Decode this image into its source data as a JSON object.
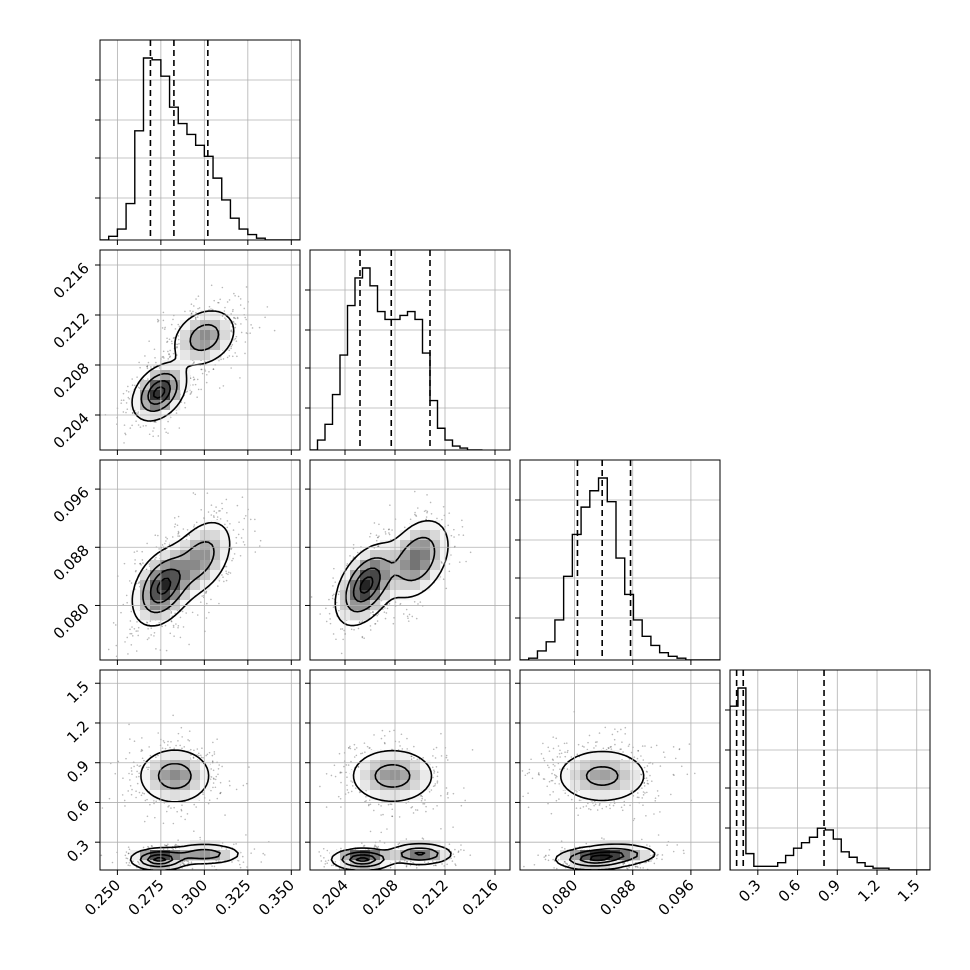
{
  "chart_data": {
    "type": "corner",
    "title": "",
    "parameters": [
      {
        "range": [
          0.24,
          0.355
        ],
        "ticks": [
          "0.250",
          "0.275",
          "0.300",
          "0.325",
          "0.350"
        ],
        "tick_values": [
          0.25,
          0.275,
          0.3,
          0.325,
          0.35
        ],
        "quantiles": [
          0.269,
          0.2825,
          0.302
        ]
      },
      {
        "range": [
          0.2012,
          0.2172
        ],
        "ticks": [
          "0.204",
          "0.208",
          "0.212",
          "0.216"
        ],
        "tick_values": [
          0.204,
          0.208,
          0.212,
          0.216
        ],
        "quantiles": [
          0.2052,
          0.2077,
          0.2108
        ]
      },
      {
        "range": [
          0.0725,
          0.1
        ],
        "ticks": [
          "0.080",
          "0.088",
          "0.096"
        ],
        "tick_values": [
          0.08,
          0.088,
          0.096
        ],
        "quantiles": [
          0.0804,
          0.0838,
          0.0877
        ]
      },
      {
        "range": [
          0.09,
          1.6
        ],
        "ticks": [
          "0.3",
          "0.6",
          "0.9",
          "1.2",
          "1.5"
        ],
        "tick_values": [
          0.3,
          0.6,
          0.9,
          1.2,
          1.5
        ],
        "quantiles": [
          0.14,
          0.19,
          0.8
        ]
      }
    ],
    "histograms": [
      {
        "edges": [
          0.24,
          0.245,
          0.25,
          0.255,
          0.26,
          0.265,
          0.27,
          0.275,
          0.28,
          0.285,
          0.29,
          0.295,
          0.3,
          0.305,
          0.31,
          0.315,
          0.32,
          0.325,
          0.33,
          0.335,
          0.34,
          0.345,
          0.35,
          0.355
        ],
        "counts": [
          0,
          0.02,
          0.06,
          0.2,
          0.6,
          1.0,
          0.99,
          0.9,
          0.73,
          0.64,
          0.58,
          0.52,
          0.46,
          0.34,
          0.22,
          0.12,
          0.06,
          0.03,
          0.01,
          0,
          0,
          0,
          0
        ]
      },
      {
        "edges": [
          0.2012,
          0.2018,
          0.2024,
          0.203,
          0.2036,
          0.2042,
          0.2048,
          0.2054,
          0.206,
          0.2066,
          0.2072,
          0.2078,
          0.2084,
          0.209,
          0.2096,
          0.2102,
          0.2108,
          0.2114,
          0.212,
          0.2126,
          0.2132,
          0.2138,
          0.2144,
          0.215
        ],
        "counts": [
          0,
          0.05,
          0.13,
          0.28,
          0.48,
          0.73,
          0.87,
          0.92,
          0.83,
          0.7,
          0.66,
          0.66,
          0.68,
          0.7,
          0.66,
          0.49,
          0.25,
          0.11,
          0.05,
          0.02,
          0.01,
          0,
          0
        ]
      },
      {
        "edges": [
          0.0725,
          0.0737,
          0.0749,
          0.0761,
          0.0773,
          0.0785,
          0.0797,
          0.0809,
          0.0821,
          0.0833,
          0.0845,
          0.0857,
          0.0869,
          0.0881,
          0.0893,
          0.0905,
          0.0917,
          0.0929,
          0.0941,
          0.0953,
          0.0965,
          0.0977,
          0.0989,
          0.1001
        ],
        "counts": [
          0,
          0.01,
          0.05,
          0.1,
          0.22,
          0.46,
          0.69,
          0.84,
          0.93,
          1.0,
          0.87,
          0.56,
          0.36,
          0.22,
          0.13,
          0.08,
          0.04,
          0.02,
          0.01,
          0,
          0,
          0,
          0
        ]
      },
      {
        "edges": [
          0.09,
          0.15,
          0.21,
          0.27,
          0.33,
          0.39,
          0.45,
          0.51,
          0.57,
          0.63,
          0.69,
          0.75,
          0.81,
          0.87,
          0.93,
          0.99,
          1.05,
          1.11,
          1.17,
          1.23,
          1.29,
          1.35,
          1.41,
          1.6
        ],
        "counts": [
          0.9,
          1.0,
          0.09,
          0.02,
          0.02,
          0.02,
          0.04,
          0.08,
          0.12,
          0.15,
          0.18,
          0.23,
          0.22,
          0.17,
          0.1,
          0.07,
          0.04,
          0.02,
          0.01,
          0.01,
          0,
          0,
          0
        ]
      }
    ],
    "contour_panels": [
      {
        "row": 1,
        "col": 0,
        "components": [
          {
            "weight": 0.55,
            "mean": [
              0.274,
              0.2058
            ],
            "sd": [
              0.0075,
              0.0011
            ],
            "rho": 0.35
          },
          {
            "weight": 0.45,
            "mean": [
              0.3,
              0.2102
            ],
            "sd": [
              0.0095,
              0.0012
            ],
            "rho": 0.25
          }
        ]
      },
      {
        "row": 2,
        "col": 0,
        "components": [
          {
            "weight": 0.6,
            "mean": [
              0.276,
              0.0825
            ],
            "sd": [
              0.0085,
              0.0026
            ],
            "rho": 0.35
          },
          {
            "weight": 0.4,
            "mean": [
              0.298,
              0.0865
            ],
            "sd": [
              0.0095,
              0.0028
            ],
            "rho": 0.4
          }
        ]
      },
      {
        "row": 2,
        "col": 1,
        "components": [
          {
            "weight": 0.55,
            "mean": [
              0.2057,
              0.0828
            ],
            "sd": [
              0.0012,
              0.0027
            ],
            "rho": 0.45
          },
          {
            "weight": 0.45,
            "mean": [
              0.2098,
              0.0864
            ],
            "sd": [
              0.0013,
              0.0028
            ],
            "rho": 0.35
          }
        ]
      },
      {
        "row": 3,
        "col": 0,
        "components": [
          {
            "weight": 0.55,
            "mean": [
              0.283,
              0.8
            ],
            "sd": [
              0.011,
              0.11
            ],
            "rho": 0
          },
          {
            "weight": 0.25,
            "mean": [
              0.274,
              0.17
            ],
            "sd": [
              0.008,
              0.04
            ],
            "rho": 0
          },
          {
            "weight": 0.2,
            "mean": [
              0.3,
              0.21
            ],
            "sd": [
              0.011,
              0.04
            ],
            "rho": 0
          }
        ]
      },
      {
        "row": 3,
        "col": 1,
        "components": [
          {
            "weight": 0.55,
            "mean": [
              0.2078,
              0.8
            ],
            "sd": [
              0.0018,
              0.11
            ],
            "rho": 0
          },
          {
            "weight": 0.25,
            "mean": [
              0.2054,
              0.17
            ],
            "sd": [
              0.0012,
              0.04
            ],
            "rho": 0
          },
          {
            "weight": 0.2,
            "mean": [
              0.21,
              0.21
            ],
            "sd": [
              0.0013,
              0.04
            ],
            "rho": 0
          }
        ]
      },
      {
        "row": 3,
        "col": 2,
        "components": [
          {
            "weight": 0.55,
            "mean": [
              0.0838,
              0.8
            ],
            "sd": [
              0.0034,
              0.11
            ],
            "rho": 0
          },
          {
            "weight": 0.25,
            "mean": [
              0.0825,
              0.17
            ],
            "sd": [
              0.0026,
              0.04
            ],
            "rho": 0
          },
          {
            "weight": 0.2,
            "mean": [
              0.086,
              0.21
            ],
            "sd": [
              0.0028,
              0.04
            ],
            "rho": 0
          }
        ]
      }
    ],
    "contour_levels": [
      0.12,
      0.4,
      0.7,
      0.92
    ],
    "grid": true,
    "colors": {
      "line": "#000000",
      "grid": "#b0b0b0",
      "fill_high": "#1a1a1a",
      "fill_low": "#ffffff"
    }
  }
}
